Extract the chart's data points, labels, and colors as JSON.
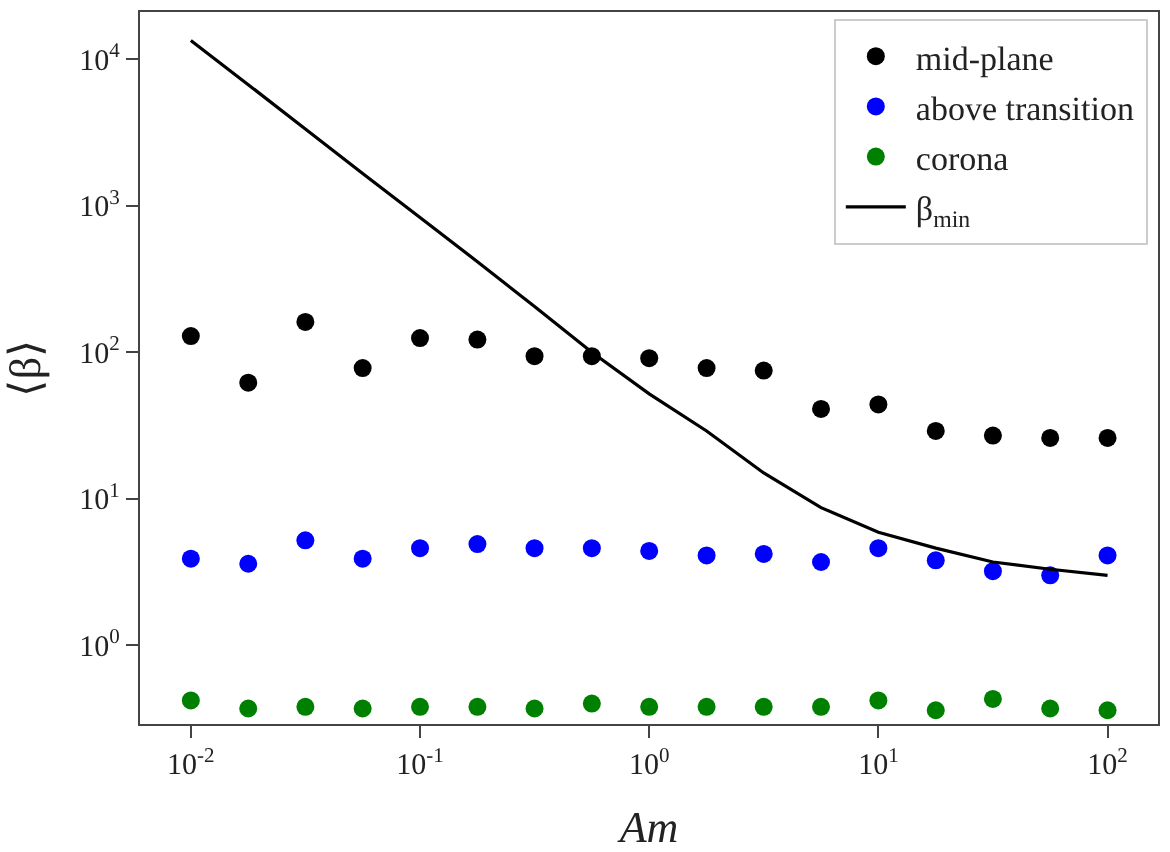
{
  "chart_data": {
    "type": "scatter",
    "xlabel": "Am",
    "ylabel": "⟨β⟩",
    "log": "xy",
    "legend": "top right",
    "marker": "circle",
    "x": [
      0.01,
      0.0178,
      0.0316,
      0.0562,
      0.1,
      0.178,
      0.316,
      0.562,
      1,
      1.78,
      3.16,
      5.62,
      10,
      17.8,
      31.6,
      56.2,
      100
    ],
    "xlim": [
      0.006,
      166
    ],
    "ylim": [
      0.29,
      21000
    ],
    "xticks": [
      {
        "value": 0.01,
        "label": "10$^{-2}$"
      },
      {
        "value": 0.1,
        "label": "10$^{-1}$"
      },
      {
        "value": 1,
        "label": "10$^{0}$"
      },
      {
        "value": 10,
        "label": "10$^{1}$"
      },
      {
        "value": 100,
        "label": "10$^{2}$"
      }
    ],
    "yticks": [
      {
        "value": 1,
        "label": "10$^{0}$"
      },
      {
        "value": 10,
        "label": "10$^{1}$"
      },
      {
        "value": 100,
        "label": "10$^{2}$"
      },
      {
        "value": 1000,
        "label": "10$^{3}$"
      },
      {
        "value": 10000,
        "label": "10$^{4}$"
      }
    ],
    "series": [
      {
        "name": "mid-plane",
        "color": "#000000",
        "values": [
          129,
          62,
          161,
          78,
          125,
          122,
          94,
          94,
          91,
          78,
          75,
          41,
          44,
          29,
          27,
          26,
          26
        ]
      },
      {
        "name": "above transition",
        "color": "#0000ff",
        "values": [
          3.9,
          3.6,
          5.2,
          3.9,
          4.6,
          4.9,
          4.6,
          4.6,
          4.4,
          4.1,
          4.2,
          3.7,
          4.6,
          3.8,
          3.2,
          3.0,
          4.1
        ]
      },
      {
        "name": "corona",
        "color": "#008000",
        "values": [
          0.42,
          0.37,
          0.38,
          0.37,
          0.38,
          0.38,
          0.37,
          0.4,
          0.38,
          0.38,
          0.38,
          0.38,
          0.42,
          0.36,
          0.43,
          0.37,
          0.36
        ]
      },
      {
        "name": "β$_{min}$",
        "color": "#000000",
        "type": "line",
        "marker": "none",
        "line_style": "solid",
        "values": [
          13400,
          6700,
          3340,
          1660,
          830,
          415,
          205,
          100,
          52,
          29,
          15,
          8.7,
          5.9,
          4.6,
          3.7,
          3.3,
          3.0
        ]
      }
    ]
  }
}
